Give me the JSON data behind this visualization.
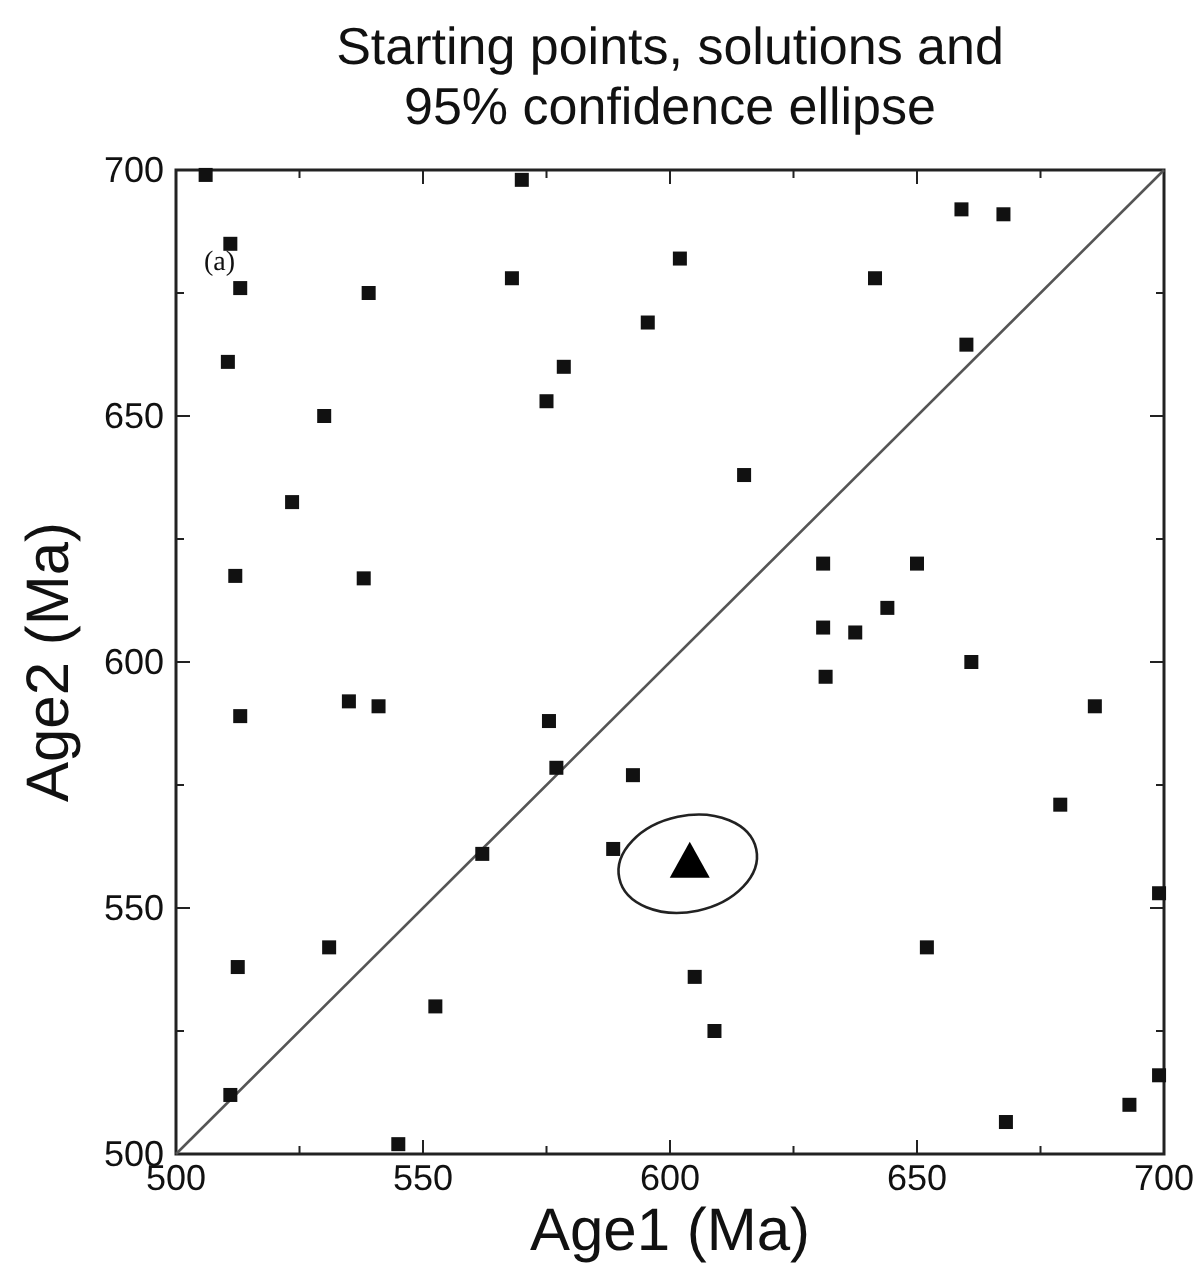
{
  "chart_data": {
    "type": "scatter",
    "title": "Starting points, solutions and\n95% confidence ellipse",
    "xlabel": "Age1 (Ma)",
    "ylabel": "Age2 (Ma)",
    "annotations": [
      "(a)"
    ],
    "xlim": [
      500,
      700
    ],
    "ylim": [
      500,
      700
    ],
    "xticks": [
      500,
      {
        "value": 525,
        "label": null
      },
      550,
      {
        "value": 575,
        "label": null
      },
      600,
      {
        "value": 625,
        "label": null
      },
      650,
      {
        "value": 675,
        "label": null
      },
      700
    ],
    "yticks": [
      500,
      {
        "value": 525,
        "label": null
      },
      550,
      {
        "value": 575,
        "label": null
      },
      600,
      {
        "value": 625,
        "label": null
      },
      650,
      {
        "value": 675,
        "label": null
      },
      700
    ],
    "grid": false,
    "series": [
      {
        "type": "line",
        "color": "#555555",
        "line_style": "solid",
        "marker": "none",
        "x": [
          500,
          700
        ],
        "values": [
          500,
          700
        ]
      },
      {
        "type": "scatter",
        "color": "#111111",
        "marker": "square",
        "x": [
          506,
          570,
          511,
          513,
          539,
          568,
          602,
          595.5,
          510.5,
          578.5,
          575,
          530,
          523.5,
          512,
          538,
          659,
          667.5,
          641.5,
          660,
          615,
          631,
          650,
          644,
          631,
          637.5,
          513,
          535,
          541,
          575.5,
          577,
          592.5,
          562,
          588.5,
          531,
          512.5,
          552.5,
          511,
          545,
          631.5,
          661,
          686,
          679,
          699,
          652,
          605,
          609,
          699,
          693,
          668
        ],
        "values": [
          699,
          698,
          685,
          676,
          675,
          678,
          682,
          669,
          661,
          660,
          653,
          650,
          632.5,
          617.5,
          617,
          692,
          691,
          678,
          664.5,
          638,
          620,
          620,
          611,
          607,
          606,
          589,
          592,
          591,
          588,
          578.5,
          577,
          561,
          562,
          542,
          538,
          530,
          512,
          502,
          597,
          600,
          591,
          571,
          553,
          542,
          536,
          525,
          516,
          510,
          506.5
        ]
      },
      {
        "type": "scatter",
        "color": "#000000",
        "marker": "triangle",
        "x": [
          604
        ],
        "values": [
          559
        ]
      }
    ]
  }
}
